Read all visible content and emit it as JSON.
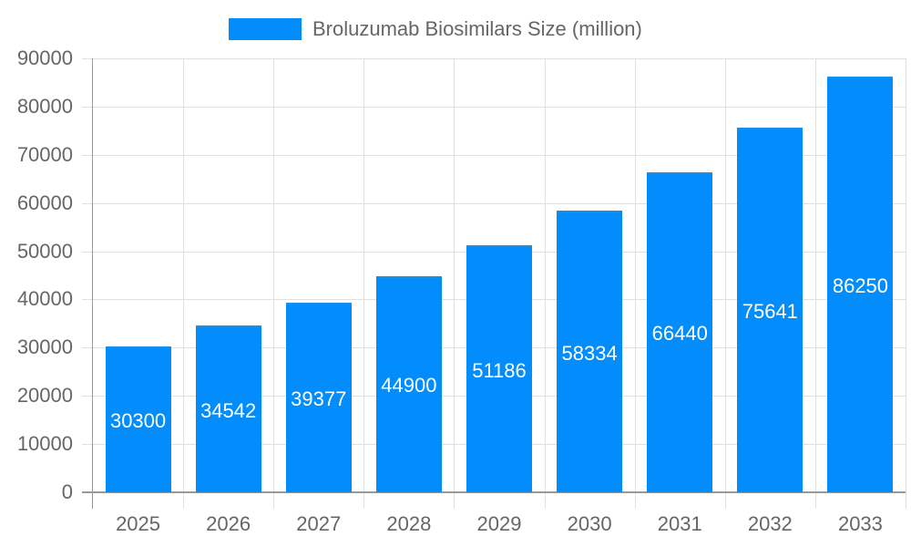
{
  "legend": {
    "label": "Broluzumab Biosimilars Size (million)",
    "color": "#028cfc"
  },
  "y_ticks": [
    "90000",
    "80000",
    "70000",
    "60000",
    "50000",
    "40000",
    "30000",
    "20000",
    "10000",
    "0"
  ],
  "x_ticks": [
    "2025",
    "2026",
    "2027",
    "2028",
    "2029",
    "2030",
    "2031",
    "2032",
    "2033"
  ],
  "bar_labels": [
    "30300",
    "34542",
    "39377",
    "44900",
    "51186",
    "58334",
    "66440",
    "75641",
    "86250"
  ],
  "chart_data": {
    "type": "bar",
    "title": "",
    "categories": [
      "2025",
      "2026",
      "2027",
      "2028",
      "2029",
      "2030",
      "2031",
      "2032",
      "2033"
    ],
    "series": [
      {
        "name": "Broluzumab Biosimilars Size (million)",
        "values": [
          30300,
          34542,
          39377,
          44900,
          51186,
          58334,
          66440,
          75641,
          86250
        ],
        "color": "#028cfc"
      }
    ],
    "xlabel": "",
    "ylabel": "",
    "ylim": [
      0,
      90000
    ],
    "yticks": [
      0,
      10000,
      20000,
      30000,
      40000,
      50000,
      60000,
      70000,
      80000,
      90000
    ],
    "grid": true,
    "legend_position": "top",
    "data_labels": true
  }
}
